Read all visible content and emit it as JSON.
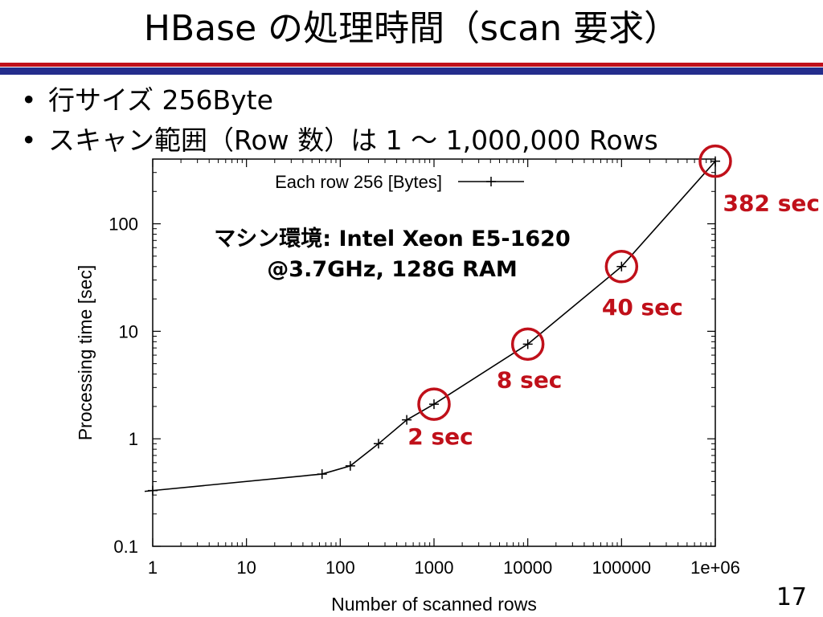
{
  "slide": {
    "title": "HBase の処理時間（scan 要求）",
    "bullets": [
      "行サイズ 256Byte",
      "スキャン範囲（Row 数）は 1 ～ 1,000,000 Rows"
    ],
    "page_number": "17"
  },
  "chart_data": {
    "type": "line",
    "xlabel": "Number of scanned rows",
    "ylabel": "Processing time [sec]",
    "x_scale": "log",
    "y_scale": "log",
    "xlim": [
      1,
      1000000
    ],
    "ylim": [
      0.1,
      400
    ],
    "x_ticks": [
      "1",
      "10",
      "100",
      "1000",
      "10000",
      "100000",
      "1e+06"
    ],
    "y_ticks": [
      "0.1",
      "1",
      "10",
      "100"
    ],
    "legend": {
      "position": "top",
      "label": "Each row 256 [Bytes]"
    },
    "series": [
      {
        "name": "Each row 256 [Bytes]",
        "x": [
          1,
          64,
          128,
          256,
          512,
          1000,
          10000,
          100000,
          1000000
        ],
        "y": [
          0.33,
          0.47,
          0.56,
          0.9,
          1.5,
          2.1,
          7.6,
          40,
          382
        ]
      }
    ],
    "annotations": {
      "machine": [
        "マシン環境: Intel Xeon E5-1620",
        "@3.7GHz, 128G RAM"
      ],
      "highlights": [
        {
          "x": 1000,
          "y": 2.1,
          "label": "2 sec"
        },
        {
          "x": 10000,
          "y": 7.6,
          "label": "8 sec"
        },
        {
          "x": 100000,
          "y": 40,
          "label": "40 sec"
        },
        {
          "x": 1000000,
          "y": 382,
          "label": "382 sec"
        }
      ]
    },
    "colors": {
      "line": "#000000",
      "highlight": "#c0101a",
      "title_rule_red": "#c0101a",
      "title_rule_blue": "#242d8c"
    }
  }
}
